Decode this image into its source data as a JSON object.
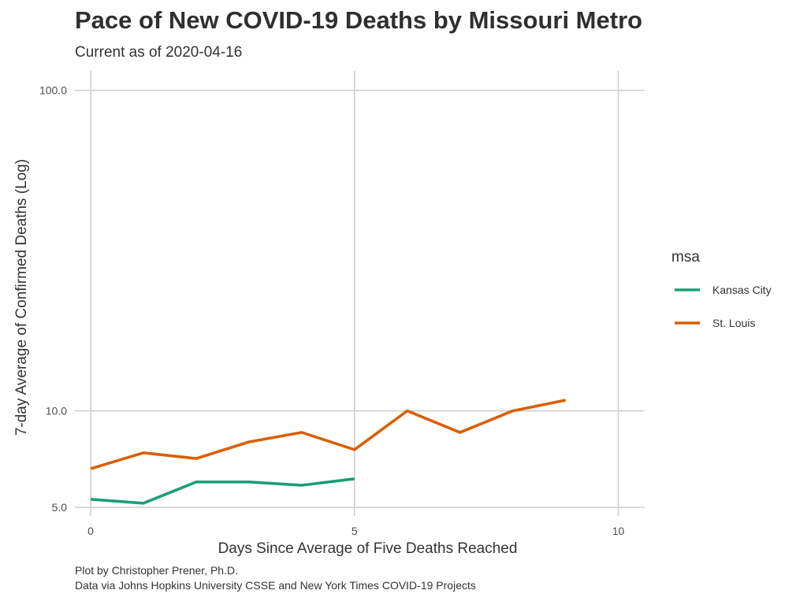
{
  "title": "Pace of New COVID-19 Deaths by Missouri Metro",
  "subtitle": "Current as of 2020-04-16",
  "caption_lines": [
    "Plot by Christopher Prener, Ph.D.",
    "Data via Johns Hopkins University CSSE and New York Times COVID-19 Projects"
  ],
  "chart_data": {
    "type": "line",
    "title": "Pace of New COVID-19 Deaths by Missouri Metro",
    "subtitle": "Current as of 2020-04-16",
    "xlabel": "Days Since Average of Five Deaths Reached",
    "ylabel": "7-day Average of Confirmed Deaths (Log)",
    "x_scale": "linear",
    "y_scale": "log10",
    "xlim": [
      -0.3,
      10.5
    ],
    "ylim": [
      4.7,
      115
    ],
    "x_ticks": [
      0,
      5,
      10
    ],
    "x_tick_labels": [
      "0",
      "5",
      "10"
    ],
    "y_ticks": [
      5,
      10,
      100
    ],
    "y_tick_labels": [
      "5.0",
      "10.0",
      "100.0"
    ],
    "grid": true,
    "legend": {
      "title": "msa",
      "position": "right"
    },
    "series": [
      {
        "name": "Kansas City",
        "color": "#1b9e77",
        "x": [
          0,
          1,
          2,
          3,
          4,
          5
        ],
        "y": [
          5.3,
          5.15,
          6.0,
          6.0,
          5.86,
          6.14
        ]
      },
      {
        "name": "St. Louis",
        "color": "#d95f02",
        "x": [
          0,
          1,
          2,
          3,
          4,
          5,
          6,
          7,
          8,
          9
        ],
        "y": [
          6.6,
          7.4,
          7.1,
          8.0,
          8.57,
          7.57,
          10.0,
          8.57,
          10.0,
          10.8
        ]
      }
    ]
  }
}
